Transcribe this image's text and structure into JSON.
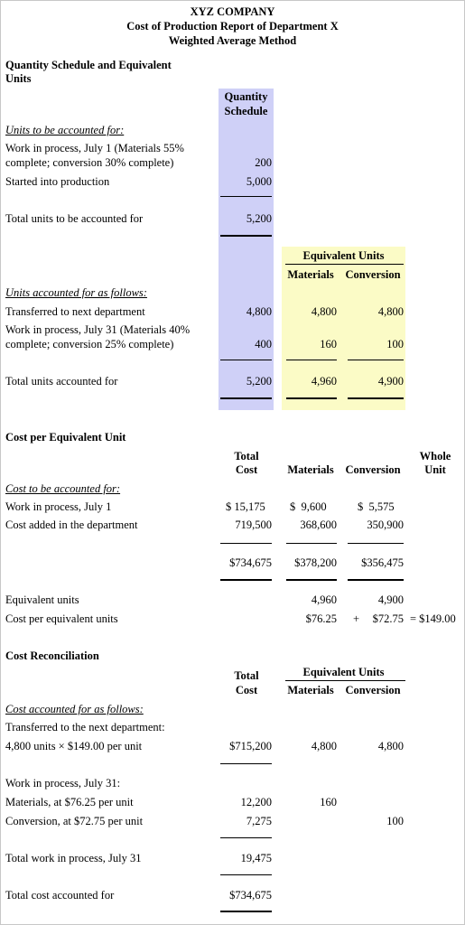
{
  "header": {
    "company": "XYZ COMPANY",
    "title": "Cost of Production Report of Department X",
    "method": "Weighted Average Method"
  },
  "qty": {
    "heading_line1": "Quantity Schedule and Equivalent",
    "heading_line2": "Units",
    "col_qty_1": "Quantity",
    "col_qty_2": "Schedule",
    "to_account_label": "Units to be accounted for:",
    "wip1_line1": "Work in process, July 1 (Materials 55%",
    "wip1_line2": "complete; conversion 30% complete)",
    "wip1_qty": "200",
    "started_label": "Started into production",
    "started_qty": "5,000",
    "total_to_label": "Total units to be accounted for",
    "total_to_qty": "5,200",
    "eu_title": "Equivalent Units",
    "col_materials": "Materials",
    "col_conversion": "Conversion",
    "accounted_label": "Units accounted for as follows:",
    "transferred_label": "Transferred to next department",
    "transferred_qty": "4,800",
    "transferred_mat": "4,800",
    "transferred_conv": "4,800",
    "wip31_line1": "Work in process, July 31 (Materials 40%",
    "wip31_line2": "complete; conversion 25% complete)",
    "wip31_qty": "400",
    "wip31_mat": "160",
    "wip31_conv": "100",
    "total_acc_label": "Total units accounted for",
    "total_acc_qty": "5,200",
    "total_acc_mat": "4,960",
    "total_acc_conv": "4,900"
  },
  "cpu": {
    "heading": "Cost per Equivalent Unit",
    "col_total_1": "Total",
    "col_total_2": "Cost",
    "col_materials": "Materials",
    "col_conversion": "Conversion",
    "col_whole_1": "Whole",
    "col_whole_2": "Unit",
    "to_account_label": "Cost to be accounted for:",
    "wip1_label": "Work in process, July 1",
    "wip1_total": "$ 15,175",
    "wip1_mat": "$  9,600",
    "wip1_conv": "$  5,575",
    "added_label": "Cost added in the department",
    "added_total": "719,500",
    "added_mat": "368,600",
    "added_conv": "350,900",
    "sum_total": "$734,675",
    "sum_mat": "$378,200",
    "sum_conv": "$356,475",
    "eu_label": "Equivalent units",
    "eu_mat": "4,960",
    "eu_conv": "4,900",
    "cpeu_label": "Cost per equivalent units",
    "cpeu_mat": "$76.25",
    "plus": "+",
    "cpeu_conv": "$72.75",
    "cpeu_whole": "= $149.00"
  },
  "recon": {
    "heading": "Cost Reconciliation",
    "col_total_1": "Total",
    "col_total_2": "Cost",
    "eu_title": "Equivalent Units",
    "col_materials": "Materials",
    "col_conversion": "Conversion",
    "accounted_label": "Cost accounted for as follows:",
    "transferred_label": "Transferred to the next department:",
    "transferred_calc": "4,800 units × $149.00 per unit",
    "transferred_total": "$715,200",
    "transferred_mat": "4,800",
    "transferred_conv": "4,800",
    "wip31_label": "Work in process, July 31:",
    "mat_label": "Materials, at $76.25 per unit",
    "mat_total": "12,200",
    "mat_eu": "160",
    "conv_label": "Conversion, at $72.75 per unit",
    "conv_total": "7,275",
    "conv_eu": "100",
    "total_wip_label": "Total work in process, July 31",
    "total_wip_total": "19,475",
    "total_cost_label": "Total cost accounted for",
    "total_cost_total": "$734,675"
  }
}
